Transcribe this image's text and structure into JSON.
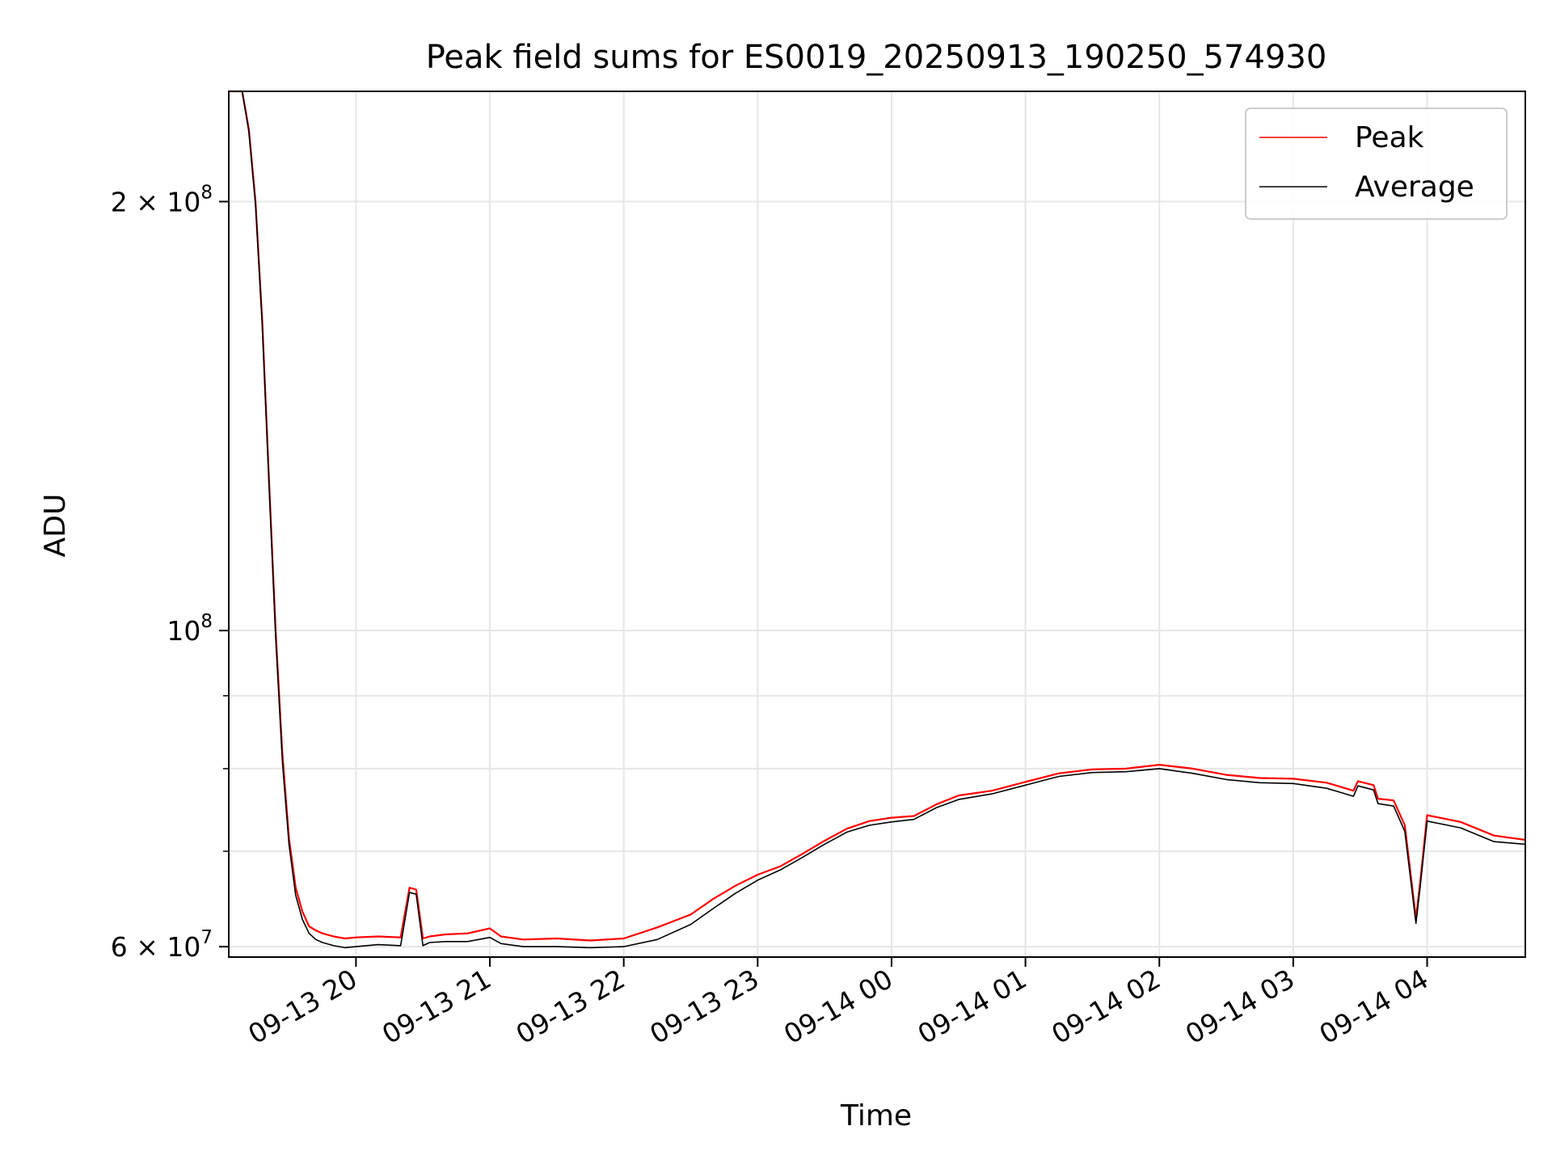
{
  "chart_data": {
    "type": "line",
    "title": "Peak field sums for ES0019_20250913_190250_574930",
    "xlabel": "Time",
    "ylabel": "ADU",
    "yscale": "log",
    "ylim": [
      59000000,
      239000000
    ],
    "xlim": [
      "2025-09-13T19:03",
      "2025-09-14T04:44"
    ],
    "grid": true,
    "legend_position": "top-right",
    "x_ticks": [
      {
        "value": "2025-09-13T20:00",
        "label": "09-13 20"
      },
      {
        "value": "2025-09-13T21:00",
        "label": "09-13 21"
      },
      {
        "value": "2025-09-13T22:00",
        "label": "09-13 22"
      },
      {
        "value": "2025-09-13T23:00",
        "label": "09-13 23"
      },
      {
        "value": "2025-09-14T00:00",
        "label": "09-14 00"
      },
      {
        "value": "2025-09-14T01:00",
        "label": "09-14 01"
      },
      {
        "value": "2025-09-14T02:00",
        "label": "09-14 02"
      },
      {
        "value": "2025-09-14T03:00",
        "label": "09-14 03"
      },
      {
        "value": "2025-09-14T04:00",
        "label": "09-14 04"
      }
    ],
    "y_ticks": [
      {
        "value": 60000000,
        "mantissa": "6",
        "exponent": "7"
      },
      {
        "value": 100000000,
        "mantissa": "",
        "exponent": "8"
      },
      {
        "value": 200000000,
        "mantissa": "2",
        "exponent": "8"
      }
    ],
    "y_minor_ticks": [
      70000000,
      80000000,
      90000000
    ],
    "series": [
      {
        "name": "Peak",
        "color": "#ff0000",
        "x": [
          "2025-09-13T19:03",
          "2025-09-13T19:09",
          "2025-09-13T19:12",
          "2025-09-13T19:15",
          "2025-09-13T19:18",
          "2025-09-13T19:21",
          "2025-09-13T19:24",
          "2025-09-13T19:27",
          "2025-09-13T19:30",
          "2025-09-13T19:33",
          "2025-09-13T19:36",
          "2025-09-13T19:39",
          "2025-09-13T19:42",
          "2025-09-13T19:45",
          "2025-09-13T19:50",
          "2025-09-13T19:55",
          "2025-09-13T20:00",
          "2025-09-13T20:10",
          "2025-09-13T20:20",
          "2025-09-13T20:24",
          "2025-09-13T20:27",
          "2025-09-13T20:30",
          "2025-09-13T20:33",
          "2025-09-13T20:40",
          "2025-09-13T20:50",
          "2025-09-13T21:00",
          "2025-09-13T21:05",
          "2025-09-13T21:15",
          "2025-09-13T21:30",
          "2025-09-13T21:45",
          "2025-09-13T22:00",
          "2025-09-13T22:15",
          "2025-09-13T22:30",
          "2025-09-13T22:40",
          "2025-09-13T22:50",
          "2025-09-13T23:00",
          "2025-09-13T23:10",
          "2025-09-13T23:20",
          "2025-09-13T23:30",
          "2025-09-13T23:40",
          "2025-09-13T23:50",
          "2025-09-14T00:00",
          "2025-09-14T00:10",
          "2025-09-14T00:20",
          "2025-09-14T00:30",
          "2025-09-14T00:45",
          "2025-09-14T01:00",
          "2025-09-14T01:15",
          "2025-09-14T01:30",
          "2025-09-14T01:45",
          "2025-09-14T02:00",
          "2025-09-14T02:15",
          "2025-09-14T02:30",
          "2025-09-14T02:45",
          "2025-09-14T03:00",
          "2025-09-14T03:15",
          "2025-09-14T03:27",
          "2025-09-14T03:29",
          "2025-09-14T03:36",
          "2025-09-14T03:38",
          "2025-09-14T03:45",
          "2025-09-14T03:50",
          "2025-09-14T03:55",
          "2025-09-14T03:57",
          "2025-09-14T04:00",
          "2025-09-14T04:15",
          "2025-09-14T04:30",
          "2025-09-14T04:44"
        ],
        "y": [
          239000000,
          239000000,
          225000000,
          200000000,
          165000000,
          128000000,
          100000000,
          82000000,
          71500000,
          66000000,
          63500000,
          62000000,
          61600000,
          61300000,
          61000000,
          60800000,
          60900000,
          61000000,
          60900000,
          66000000,
          65800000,
          60800000,
          61000000,
          61200000,
          61300000,
          61800000,
          61000000,
          60700000,
          60800000,
          60600000,
          60800000,
          61900000,
          63200000,
          64800000,
          66200000,
          67400000,
          68300000,
          69700000,
          71200000,
          72600000,
          73500000,
          73900000,
          74100000,
          75500000,
          76600000,
          77200000,
          78300000,
          79400000,
          79900000,
          80000000,
          80500000,
          80000000,
          79200000,
          78800000,
          78700000,
          78200000,
          77200000,
          78400000,
          77900000,
          76200000,
          76000000,
          73000000,
          62800000,
          66800000,
          74200000,
          73400000,
          71800000,
          71300000
        ]
      },
      {
        "name": "Average",
        "color": "#000000",
        "x": [
          "2025-09-13T19:03",
          "2025-09-13T19:09",
          "2025-09-13T19:12",
          "2025-09-13T19:15",
          "2025-09-13T19:18",
          "2025-09-13T19:21",
          "2025-09-13T19:24",
          "2025-09-13T19:27",
          "2025-09-13T19:30",
          "2025-09-13T19:33",
          "2025-09-13T19:36",
          "2025-09-13T19:39",
          "2025-09-13T19:42",
          "2025-09-13T19:45",
          "2025-09-13T19:50",
          "2025-09-13T19:55",
          "2025-09-13T20:00",
          "2025-09-13T20:10",
          "2025-09-13T20:20",
          "2025-09-13T20:24",
          "2025-09-13T20:27",
          "2025-09-13T20:30",
          "2025-09-13T20:33",
          "2025-09-13T20:40",
          "2025-09-13T20:50",
          "2025-09-13T21:00",
          "2025-09-13T21:05",
          "2025-09-13T21:15",
          "2025-09-13T21:30",
          "2025-09-13T21:45",
          "2025-09-13T22:00",
          "2025-09-13T22:15",
          "2025-09-13T22:30",
          "2025-09-13T22:40",
          "2025-09-13T22:50",
          "2025-09-13T23:00",
          "2025-09-13T23:10",
          "2025-09-13T23:20",
          "2025-09-13T23:30",
          "2025-09-13T23:40",
          "2025-09-13T23:50",
          "2025-09-14T00:00",
          "2025-09-14T00:10",
          "2025-09-14T00:20",
          "2025-09-14T00:30",
          "2025-09-14T00:45",
          "2025-09-14T01:00",
          "2025-09-14T01:15",
          "2025-09-14T01:30",
          "2025-09-14T01:45",
          "2025-09-14T02:00",
          "2025-09-14T02:15",
          "2025-09-14T02:30",
          "2025-09-14T02:45",
          "2025-09-14T03:00",
          "2025-09-14T03:15",
          "2025-09-14T03:27",
          "2025-09-14T03:29",
          "2025-09-14T03:36",
          "2025-09-14T03:38",
          "2025-09-14T03:45",
          "2025-09-14T03:50",
          "2025-09-14T03:55",
          "2025-09-14T03:57",
          "2025-09-14T04:00",
          "2025-09-14T04:15",
          "2025-09-14T04:30",
          "2025-09-14T04:44"
        ],
        "y": [
          239000000,
          239000000,
          224000000,
          199000000,
          164000000,
          127000000,
          99000000,
          81000000,
          70800000,
          65200000,
          62700000,
          61300000,
          60700000,
          60400000,
          60100000,
          59900000,
          60000000,
          60200000,
          60100000,
          65500000,
          65300000,
          60100000,
          60400000,
          60500000,
          60500000,
          60900000,
          60300000,
          60000000,
          60000000,
          59900000,
          60000000,
          60700000,
          62200000,
          63800000,
          65400000,
          66800000,
          67900000,
          69300000,
          70800000,
          72200000,
          73000000,
          73400000,
          73700000,
          75100000,
          76100000,
          76800000,
          77900000,
          79000000,
          79500000,
          79600000,
          80000000,
          79400000,
          78600000,
          78200000,
          78100000,
          77500000,
          76500000,
          77800000,
          77300000,
          75600000,
          75300000,
          72300000,
          62300000,
          66300000,
          73500000,
          72700000,
          71100000,
          70800000
        ]
      }
    ]
  }
}
